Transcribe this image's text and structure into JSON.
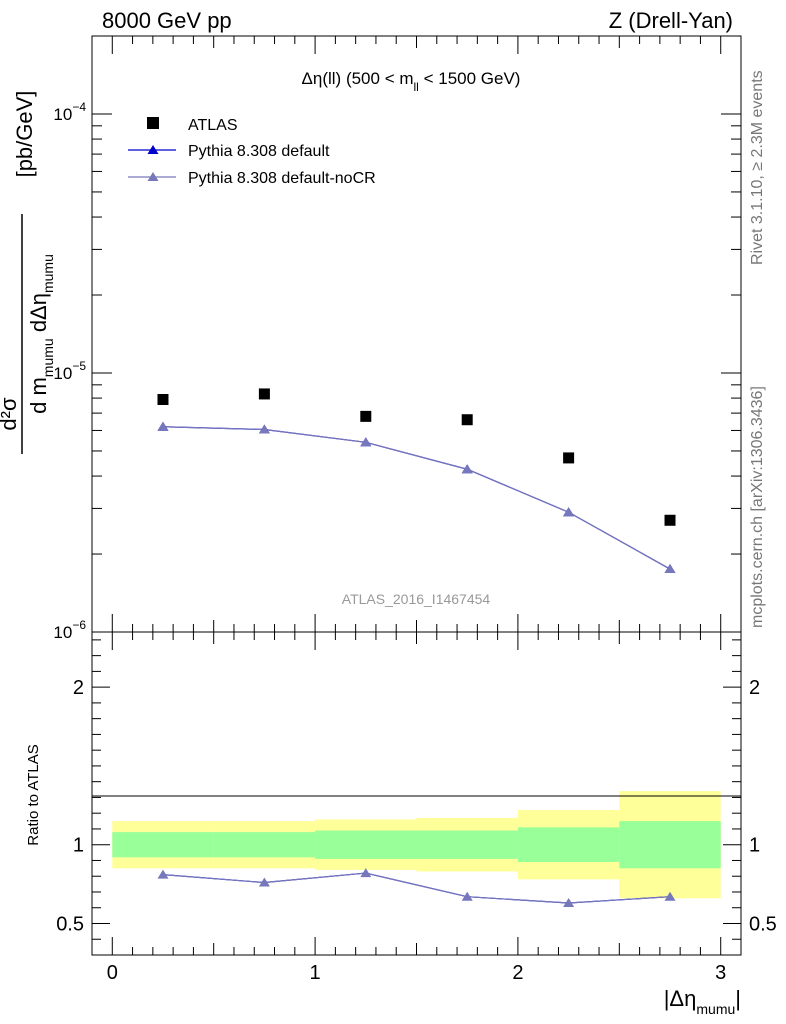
{
  "header": {
    "left": "8000 GeV pp",
    "right": "Z (Drell-Yan)"
  },
  "side_labels": {
    "rivet": "Rivet 3.1.10, ≥ 2.3M events",
    "mcplots": "mcplots.cern.ch [arXiv:1306.3436]"
  },
  "watermark": "ATLAS_2016_I1467454",
  "title": {
    "pre": "Δη(ll) (500 < m",
    "sub": "ll",
    "post": " < 1500 GeV)"
  },
  "ylabel_main": {
    "num": "d²σ",
    "den_a": "d m",
    "den_sub1": "mumu",
    "den_b": " dΔη",
    "den_sub2": "mumu",
    "unit": "[pb/GeV]"
  },
  "ylabel_ratio": "Ratio to ATLAS",
  "xlabel": {
    "pre": "|Δη",
    "sub": "mumu",
    "post": "|"
  },
  "colors": {
    "data": "#000000",
    "pythia_default": "#0000cc",
    "pythia_nocr": "#7777bb",
    "band_inner": "#99ff99",
    "band_outer": "#ffff99"
  },
  "chart_data": {
    "type": "scatter",
    "x_edges": [
      0,
      0.5,
      1.0,
      1.5,
      2.0,
      2.5,
      3.0
    ],
    "x": [
      0.25,
      0.75,
      1.25,
      1.75,
      2.25,
      2.75
    ],
    "xlim": [
      -0.1,
      3.1
    ],
    "ylim_main": [
      1e-06,
      0.0002
    ],
    "y_scale_main": "log",
    "ylim_ratio": [
      0.3,
      2.35
    ],
    "series": [
      {
        "name": "ATLAS",
        "marker": "square",
        "values": [
          7.9e-06,
          8.3e-06,
          6.8e-06,
          6.6e-06,
          4.7e-06,
          2.7e-06
        ]
      },
      {
        "name": "Pythia 8.308 default",
        "marker": "triangle",
        "values": [
          6.2e-06,
          6.05e-06,
          5.4e-06,
          4.25e-06,
          2.9e-06,
          1.75e-06
        ]
      },
      {
        "name": "Pythia 8.308 default-noCR",
        "marker": "triangle",
        "values": [
          6.2e-06,
          6.05e-06,
          5.4e-06,
          4.25e-06,
          2.9e-06,
          1.75e-06
        ]
      }
    ],
    "ratio": {
      "values": [
        0.81,
        0.76,
        0.82,
        0.67,
        0.63,
        0.67
      ],
      "band_inner": [
        [
          0.92,
          1.08
        ],
        [
          0.92,
          1.08
        ],
        [
          0.91,
          1.09
        ],
        [
          0.91,
          1.09
        ],
        [
          0.89,
          1.11
        ],
        [
          0.85,
          1.15
        ]
      ],
      "band_outer": [
        [
          0.85,
          1.15
        ],
        [
          0.85,
          1.15
        ],
        [
          0.84,
          1.16
        ],
        [
          0.83,
          1.17
        ],
        [
          0.78,
          1.22
        ],
        [
          0.66,
          1.34
        ]
      ]
    },
    "x_ticks": [
      0,
      1,
      2,
      3
    ],
    "x_tick_labels": [
      "0",
      "1",
      "2",
      "3"
    ],
    "ratio_ticks": [
      0.5,
      1,
      2
    ],
    "ratio_tick_labels": [
      "0.5",
      "1",
      "2"
    ],
    "main_tick_labels": [
      {
        "base": "10",
        "exp": "−6",
        "value": 1e-06
      },
      {
        "base": "10",
        "exp": "−5",
        "value": 1e-05
      },
      {
        "base": "10",
        "exp": "−4",
        "value": 0.0001
      }
    ],
    "legend": "top-left"
  }
}
